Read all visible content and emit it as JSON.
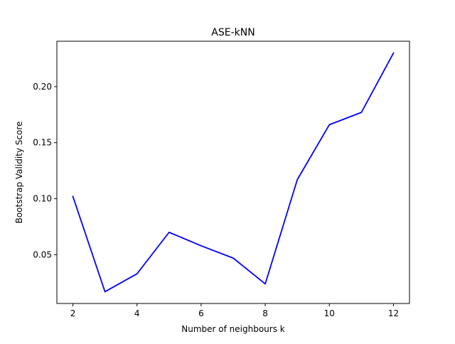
{
  "chart_data": {
    "type": "line",
    "title": "ASE-kNN",
    "xlabel": "Number of neighbours k",
    "ylabel": "Bootstrap Validity Score",
    "x": [
      2,
      3,
      4,
      5,
      6,
      7,
      8,
      9,
      10,
      11,
      12
    ],
    "series": [
      {
        "values": [
          0.102,
          0.017,
          0.033,
          0.07,
          0.058,
          0.047,
          0.024,
          0.117,
          0.166,
          0.177,
          0.23
        ],
        "color": "#0000ff"
      }
    ],
    "xlim": [
      1.5,
      12.5
    ],
    "ylim": [
      0.0065,
      0.2405
    ],
    "xticks": [
      2,
      4,
      6,
      8,
      10,
      12
    ],
    "xtick_labels": [
      "2",
      "4",
      "6",
      "8",
      "10",
      "12"
    ],
    "yticks": [
      0.05,
      0.1,
      0.15,
      0.2
    ],
    "ytick_labels": [
      "0.05",
      "0.10",
      "0.15",
      "0.20"
    ],
    "grid": false,
    "legend": "none"
  }
}
